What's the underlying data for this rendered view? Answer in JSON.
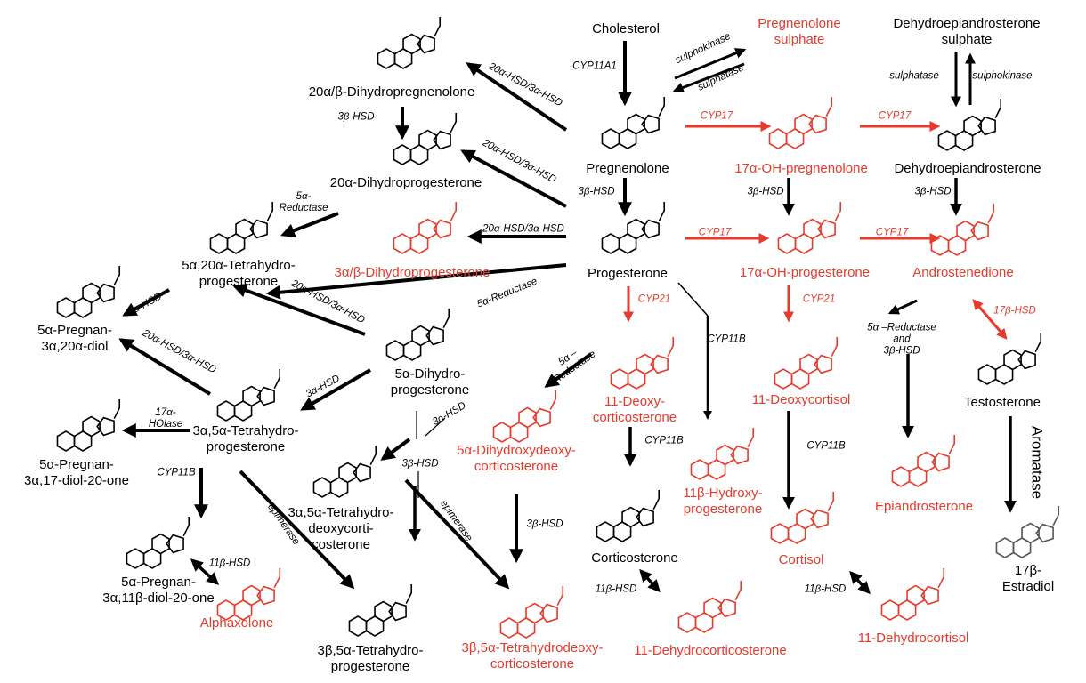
{
  "colors": {
    "black": "#000000",
    "red": "#e8392b",
    "faded": "#555555"
  },
  "compounds": [
    {
      "id": "cholesterol",
      "name": "Cholesterol",
      "color": "black"
    },
    {
      "id": "preg_sulph",
      "name": "Pregnenolone\nsulphate",
      "color": "red"
    },
    {
      "id": "dhea_sulph",
      "name": "Dehydroepiandrosterone\nsulphate",
      "color": "black"
    },
    {
      "id": "dihydropregnenolone",
      "name": "20α/β-Dihydropregnenolone",
      "color": "black"
    },
    {
      "id": "pregnenolone",
      "name": "Pregnenolone",
      "color": "black"
    },
    {
      "id": "oh_pregnenolone",
      "name": "17α-OH-pregnenolone",
      "color": "red"
    },
    {
      "id": "dhea",
      "name": "Dehydroepiandrosterone",
      "color": "black"
    },
    {
      "id": "dihydroprogesterone20",
      "name": "20α-Dihydroprogesterone",
      "color": "black"
    },
    {
      "id": "tetrahydroprog520",
      "name": "5α,20α-Tetrahydro-\nprogesterone",
      "color": "black"
    },
    {
      "id": "dihydroprog3ab",
      "name": "3α/β-Dihydroprogesterone",
      "color": "red"
    },
    {
      "id": "progesterone",
      "name": "Progesterone",
      "color": "black"
    },
    {
      "id": "oh_progesterone",
      "name": "17α-OH-progesterone",
      "color": "red"
    },
    {
      "id": "androstenedione",
      "name": "Androstenedione",
      "color": "red"
    },
    {
      "id": "pregnan_diol",
      "name": "5α-Pregnan-\n3α,20α-diol",
      "color": "black"
    },
    {
      "id": "dihydroprog5a",
      "name": "5α-Dihydro-\nprogesterone",
      "color": "black"
    },
    {
      "id": "deoxycorticosterone",
      "name": "11-Deoxy-\ncorticosterone",
      "color": "red"
    },
    {
      "id": "deoxycortisol",
      "name": "11-Deoxycortisol",
      "color": "red"
    },
    {
      "id": "testosterone",
      "name": "Testosterone",
      "color": "black"
    },
    {
      "id": "tetrahydroprog35",
      "name": "3α,5α-Tetrahydro-\nprogesterone",
      "color": "black"
    },
    {
      "id": "dhdoc",
      "name": "5α-Dihydroxydeoxy-\ncorticosterone",
      "color": "red"
    },
    {
      "id": "pregnan_17diol",
      "name": "5α-Pregnan-\n3α,17-diol-20-one",
      "color": "black"
    },
    {
      "id": "thdoc",
      "name": "3α,5α-Tetrahydro-\ndeoxycorti-\ncosterone",
      "color": "black"
    },
    {
      "id": "hydroxyprog11b",
      "name": "11β-Hydroxy-\nprogesterone",
      "color": "red"
    },
    {
      "id": "epiandrosterone",
      "name": "Epiandrosterone",
      "color": "red"
    },
    {
      "id": "corticosterone",
      "name": "Corticosterone",
      "color": "black"
    },
    {
      "id": "cortisol",
      "name": "Cortisol",
      "color": "red"
    },
    {
      "id": "estradiol",
      "name": "17β-Estradiol",
      "color": "black"
    },
    {
      "id": "pregnan_11diol",
      "name": "5α-Pregnan-\n3α,11β-diol-20-one",
      "color": "black"
    },
    {
      "id": "alphaxolone",
      "name": "Alphaxolone",
      "color": "red"
    },
    {
      "id": "tetrahydroprog3b5a",
      "name": "3β,5α-Tetrahydro-\nprogesterone",
      "color": "black"
    },
    {
      "id": "thdoc3b",
      "name": "3β,5α-Tetrahydrodeoxy-\ncorticosterone",
      "color": "red"
    },
    {
      "id": "dehydrocorticosterone",
      "name": "11-Dehydrocorticosterone",
      "color": "red"
    },
    {
      "id": "dehydrocortisol",
      "name": "11-Dehydrocortisol",
      "color": "red"
    }
  ],
  "enzymes": [
    {
      "text": "CYP11A1",
      "color": "black"
    },
    {
      "text": "sulphokinase",
      "color": "black"
    },
    {
      "text": "sulphatase",
      "color": "black"
    },
    {
      "text": "sulphatase",
      "color": "black"
    },
    {
      "text": "sulphokinase",
      "color": "black"
    },
    {
      "text": "20α-HSD/3α-HSD",
      "color": "black"
    },
    {
      "text": "3β-HSD",
      "color": "black"
    },
    {
      "text": "CYP17",
      "color": "red"
    },
    {
      "text": "CYP17",
      "color": "red"
    },
    {
      "text": "20α-HSD/3α-HSD",
      "color": "black"
    },
    {
      "text": "3β-HSD",
      "color": "black"
    },
    {
      "text": "3β-HSD",
      "color": "black"
    },
    {
      "text": "3β-HSD",
      "color": "black"
    },
    {
      "text": "5α-\nReductase",
      "color": "black"
    },
    {
      "text": "20α-HSD/3α-HSD",
      "color": "black"
    },
    {
      "text": "CYP17",
      "color": "red"
    },
    {
      "text": "CYP17",
      "color": "red"
    },
    {
      "text": "5α-Reductase",
      "color": "black"
    },
    {
      "text": "CYP21",
      "color": "red"
    },
    {
      "text": "CYP21",
      "color": "red"
    },
    {
      "text": "3α-HSD",
      "color": "black"
    },
    {
      "text": "20α-HSD/3α-HSD",
      "color": "black"
    },
    {
      "text": "CYP11B",
      "color": "black"
    },
    {
      "text": "5α –\nReductase",
      "color": "black"
    },
    {
      "text": "5α –Reductase\nand\n3β-HSD",
      "color": "black"
    },
    {
      "text": "17β-HSD",
      "color": "red"
    },
    {
      "text": "20α-HSD/3α-HSD",
      "color": "black"
    },
    {
      "text": "3α-HSD",
      "color": "black"
    },
    {
      "text": "17α-\nHOlase",
      "color": "black"
    },
    {
      "text": "3α-HSD",
      "color": "black"
    },
    {
      "text": "CYP11B",
      "color": "black"
    },
    {
      "text": "3β-HSD",
      "color": "black"
    },
    {
      "text": "CYP11B",
      "color": "black"
    },
    {
      "text": "CYP11B",
      "color": "black"
    },
    {
      "text": "epimerase",
      "color": "black"
    },
    {
      "text": "epimerase",
      "color": "black"
    },
    {
      "text": "3β-HSD",
      "color": "black"
    },
    {
      "text": "11β-HSD",
      "color": "black"
    },
    {
      "text": "11β-HSD",
      "color": "black"
    },
    {
      "text": "11β-HSD",
      "color": "black"
    },
    {
      "text": "Aromatase",
      "color": "black"
    }
  ]
}
